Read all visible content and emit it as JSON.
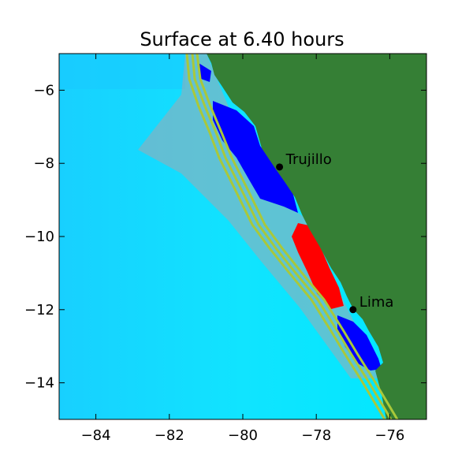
{
  "title": "Surface at 6.40 hours",
  "map": {
    "x_range": [
      -85,
      -75
    ],
    "y_range": [
      -15,
      -5
    ],
    "x_ticks": [
      -84,
      -82,
      -80,
      -78,
      -76
    ],
    "y_ticks": [
      -6,
      -8,
      -10,
      -12,
      -14
    ],
    "x_tick_labels": [
      "−84",
      "−82",
      "−80",
      "−78",
      "−76"
    ],
    "y_tick_labels": [
      "−6",
      "−8",
      "−10",
      "−12",
      "−14"
    ],
    "colors": {
      "land": "#357f35",
      "ocean": "#00e8ff",
      "ocean_deep_left": "#19cfff",
      "positive_wave": "#ff0000",
      "negative_wave": "#0000ff",
      "neutral_wave": "#9aa6a8",
      "contour": "#a9c83a"
    },
    "cities": [
      {
        "name": "Trujillo",
        "lon": -79.0,
        "lat": -8.1
      },
      {
        "name": "Lima",
        "lon": -77.0,
        "lat": -12.0
      }
    ]
  }
}
